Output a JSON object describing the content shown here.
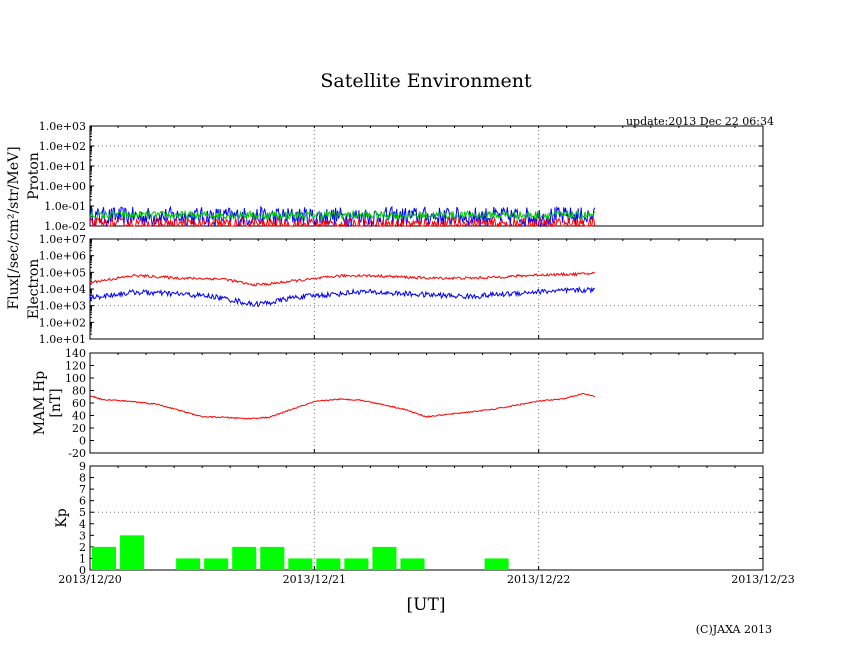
{
  "chart_data": {
    "type": "line",
    "title": "Satellite Environment",
    "update_text": "update:2013 Dec 22 06:34",
    "xlabel": "[UT]",
    "copyright": "(C)JAXA 2013",
    "x_ticks": [
      "2013/12/20",
      "2013/12/21",
      "2013/12/22",
      "2013/12/23"
    ],
    "x_range_days": [
      0,
      3
    ],
    "grid": true,
    "shared_ylabel": "Flux[/sec/cm²/str/MeV]",
    "panels": [
      {
        "id": "proton",
        "ylabel": "Proton",
        "scale": "log",
        "ylim": [
          0.01,
          1000
        ],
        "y_ticks": [
          "1.0e-02",
          "1.0e-01",
          "1.0e+00",
          "1.0e+01",
          "1.0e+02",
          "1.0e+03"
        ],
        "series": [
          {
            "color": "#0000ff",
            "noise": 0.12,
            "x": [
              0,
              2.25
            ],
            "y": [
              0.03,
              0.03
            ]
          },
          {
            "color": "#00c800",
            "noise": 0.05,
            "x": [
              0,
              2.25
            ],
            "y": [
              0.035,
              0.035
            ]
          },
          {
            "color": "#ff0000",
            "noise": 0.08,
            "x": [
              0,
              2.25
            ],
            "y": [
              0.012,
              0.012
            ]
          }
        ]
      },
      {
        "id": "electron",
        "ylabel": "Electron",
        "scale": "log",
        "ylim": [
          10,
          10000000
        ],
        "y_ticks": [
          "1.0e+01",
          "1.0e+02",
          "1.0e+03",
          "1.0e+04",
          "1.0e+05",
          "1.0e+06",
          "1.0e+07"
        ],
        "series": [
          {
            "color": "#ff0000",
            "noise": 0.02,
            "x": [
              0,
              0.1,
              0.2,
              0.4,
              0.6,
              0.72,
              0.8,
              0.9,
              1.0,
              1.1,
              1.2,
              1.3,
              1.5,
              1.7,
              1.8,
              2.0,
              2.2,
              2.25
            ],
            "y": [
              25000,
              40000,
              65000,
              45000,
              40000,
              18000,
              20000,
              30000,
              40000,
              60000,
              65000,
              60000,
              45000,
              45000,
              50000,
              70000,
              80000,
              90000
            ]
          },
          {
            "color": "#0000ff",
            "noise": 0.04,
            "x": [
              0,
              0.1,
              0.2,
              0.4,
              0.55,
              0.65,
              0.72,
              0.8,
              0.9,
              1.0,
              1.1,
              1.2,
              1.3,
              1.5,
              1.7,
              1.8,
              2.0,
              2.2,
              2.25
            ],
            "y": [
              3000,
              4500,
              6500,
              5000,
              3500,
              2000,
              1200,
              1500,
              3000,
              4000,
              5000,
              7000,
              6000,
              4500,
              3500,
              4500,
              7000,
              8500,
              9000
            ]
          }
        ]
      },
      {
        "id": "mam",
        "ylabel": "MAM Hp",
        "ylabel2": "[nT]",
        "scale": "linear",
        "ylim": [
          -20,
          140
        ],
        "y_ticks": [
          "-20",
          "0",
          "20",
          "40",
          "60",
          "80",
          "100",
          "120",
          "140"
        ],
        "series": [
          {
            "color": "#ff0000",
            "noise": 0.5,
            "x": [
              0,
              0.05,
              0.2,
              0.3,
              0.4,
              0.5,
              0.6,
              0.7,
              0.8,
              0.9,
              1.0,
              1.1,
              1.2,
              1.3,
              1.4,
              1.5,
              1.6,
              1.8,
              2.0,
              2.1,
              2.2,
              2.25
            ],
            "y": [
              72,
              66,
              62,
              58,
              48,
              38,
              37,
              35,
              37,
              50,
              62,
              66,
              65,
              58,
              50,
              38,
              42,
              50,
              63,
              66,
              75,
              70
            ]
          }
        ]
      },
      {
        "id": "kp",
        "ylabel": "Kp",
        "scale": "linear",
        "ylim": [
          0,
          9
        ],
        "y_ticks": [
          "0",
          "1",
          "2",
          "3",
          "4",
          "5",
          "6",
          "7",
          "8",
          "9"
        ],
        "bar_color": "#00ff00",
        "bars": [
          {
            "t": 0,
            "v": 2
          },
          {
            "t": 0.125,
            "v": 3
          },
          {
            "t": 0.375,
            "v": 1
          },
          {
            "t": 0.5,
            "v": 1
          },
          {
            "t": 0.625,
            "v": 2
          },
          {
            "t": 0.75,
            "v": 2
          },
          {
            "t": 0.875,
            "v": 1
          },
          {
            "t": 1.0,
            "v": 1
          },
          {
            "t": 1.125,
            "v": 1
          },
          {
            "t": 1.25,
            "v": 2
          },
          {
            "t": 1.375,
            "v": 1
          },
          {
            "t": 1.75,
            "v": 1
          }
        ]
      }
    ]
  }
}
